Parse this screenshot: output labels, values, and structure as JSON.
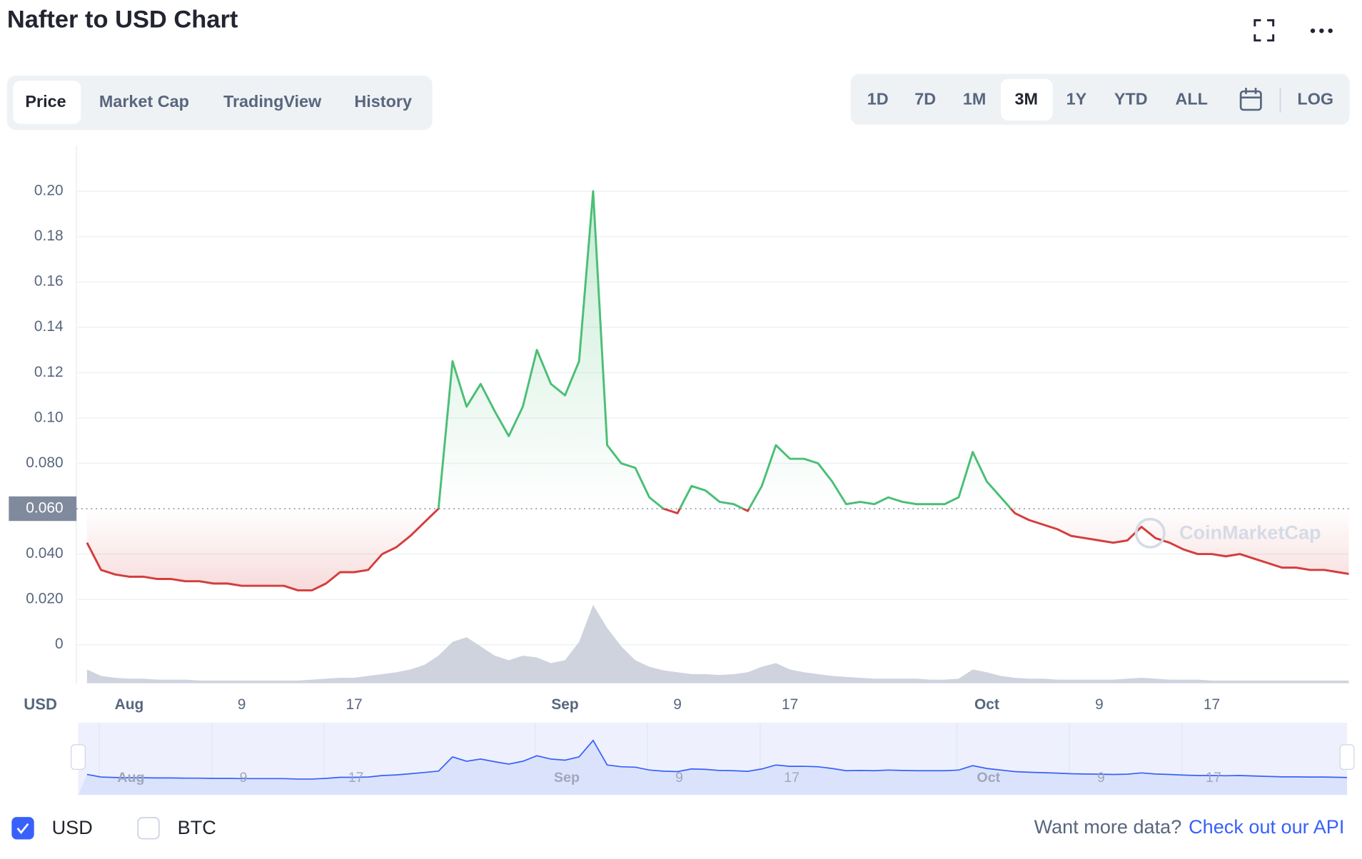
{
  "header": {
    "title": "Nafter to USD Chart"
  },
  "tabs": [
    "Price",
    "Market Cap",
    "TradingView",
    "History"
  ],
  "active_tab": 0,
  "ranges": [
    "1D",
    "7D",
    "1M",
    "3M",
    "1Y",
    "YTD",
    "ALL"
  ],
  "active_range": 3,
  "log_label": "LOG",
  "watermark": "CoinMarketCap",
  "compare": {
    "label": "BTC",
    "checked": false
  },
  "footer": {
    "prompt": "Want more data?",
    "link": "Check out our API"
  },
  "chart_data": {
    "type": "line",
    "unit_label": "USD",
    "categories": [
      null,
      null,
      null,
      "Aug",
      null,
      null,
      null,
      null,
      null,
      null,
      null,
      "9",
      null,
      null,
      null,
      null,
      null,
      null,
      null,
      "17",
      null,
      null,
      null,
      null,
      null,
      null,
      null,
      null,
      null,
      null,
      null,
      null,
      null,
      null,
      "Sep",
      null,
      null,
      null,
      null,
      null,
      null,
      null,
      "9",
      null,
      null,
      null,
      null,
      null,
      null,
      null,
      "17",
      null,
      null,
      null,
      null,
      null,
      null,
      null,
      null,
      null,
      null,
      null,
      null,
      null,
      "Oct",
      null,
      null,
      null,
      null,
      null,
      null,
      null,
      "9",
      null,
      null,
      null,
      null,
      null,
      null,
      null,
      "17",
      null,
      null,
      null,
      null,
      null,
      null,
      null,
      null,
      null,
      null
    ],
    "series": [
      {
        "name": "USD",
        "checked": true,
        "color_up": "#4bbf76",
        "color_down": "#d43d3d",
        "values": [
          0.045,
          0.033,
          0.031,
          0.03,
          0.03,
          0.029,
          0.029,
          0.028,
          0.028,
          0.027,
          0.027,
          0.026,
          0.026,
          0.026,
          0.026,
          0.024,
          0.024,
          0.027,
          0.032,
          0.032,
          0.033,
          0.04,
          0.043,
          0.048,
          0.054,
          0.06,
          0.125,
          0.105,
          0.115,
          0.103,
          0.092,
          0.105,
          0.13,
          0.115,
          0.11,
          0.125,
          0.2,
          0.088,
          0.08,
          0.078,
          0.065,
          0.06,
          0.058,
          0.07,
          0.068,
          0.063,
          0.062,
          0.059,
          0.07,
          0.088,
          0.082,
          0.082,
          0.08,
          0.072,
          0.062,
          0.063,
          0.062,
          0.065,
          0.063,
          0.062,
          0.062,
          0.062,
          0.065,
          0.085,
          0.072,
          0.065,
          0.058,
          0.055,
          0.053,
          0.051,
          0.048,
          0.047,
          0.046,
          0.045,
          0.046,
          0.052,
          0.047,
          0.045,
          0.042,
          0.04,
          0.04,
          0.039,
          0.04,
          0.038,
          0.036,
          0.034,
          0.034,
          0.033,
          0.033,
          0.032,
          0.031
        ]
      }
    ],
    "volume": {
      "color": "#cfd3de",
      "values": [
        15,
        8,
        6,
        5,
        5,
        4,
        4,
        4,
        3,
        3,
        3,
        3,
        3,
        3,
        3,
        3,
        4,
        5,
        6,
        6,
        8,
        10,
        12,
        15,
        20,
        30,
        45,
        50,
        40,
        30,
        25,
        30,
        28,
        22,
        25,
        45,
        85,
        60,
        40,
        25,
        18,
        14,
        12,
        10,
        10,
        9,
        10,
        12,
        18,
        22,
        15,
        12,
        10,
        8,
        7,
        6,
        5,
        5,
        5,
        5,
        4,
        4,
        5,
        15,
        12,
        8,
        6,
        5,
        5,
        4,
        4,
        4,
        4,
        4,
        5,
        6,
        5,
        4,
        4,
        4,
        3,
        3,
        3,
        3,
        3,
        3,
        3,
        3,
        3,
        3,
        3
      ]
    },
    "navigator": {
      "line_color": "#3861fb",
      "fill": "#dbe3fc"
    },
    "ylim": [
      -0.017,
      0.22
    ],
    "yticks": [
      0,
      {
        "value": 0.02,
        "label": "0.020"
      },
      {
        "value": 0.04,
        "label": "0.040"
      },
      {
        "value": 0.06,
        "label": "0.060"
      },
      {
        "value": 0.08,
        "label": "0.080"
      },
      {
        "value": 0.1,
        "label": "0.10"
      },
      {
        "value": 0.12,
        "label": "0.12"
      },
      {
        "value": 0.14,
        "label": "0.14"
      },
      {
        "value": 0.16,
        "label": "0.16"
      },
      {
        "value": 0.18,
        "label": "0.18"
      },
      {
        "value": 0.2,
        "label": "0.20"
      }
    ],
    "baseline": 0.06,
    "grid": true
  }
}
